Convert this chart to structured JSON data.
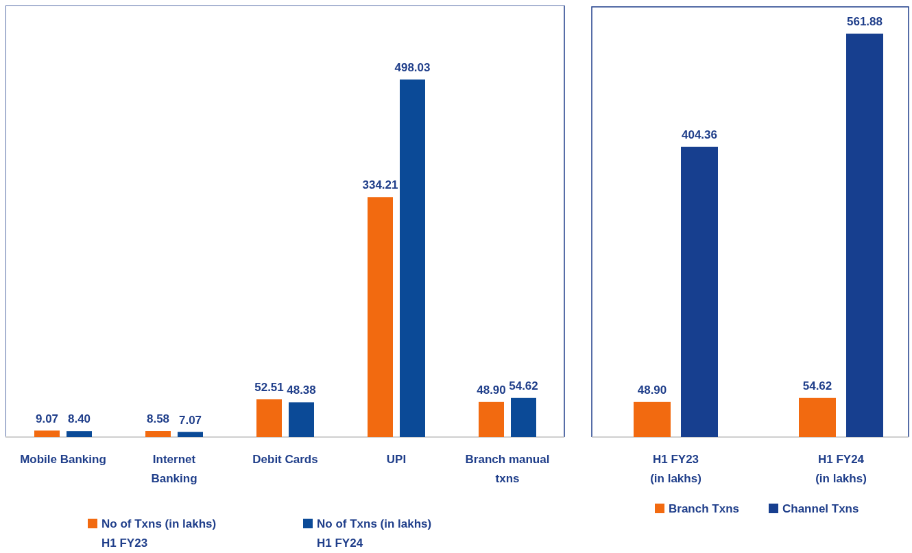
{
  "chart_data": [
    {
      "type": "bar",
      "categories": [
        "Mobile Banking",
        "Internet Banking",
        "Debit Cards",
        "UPI",
        "Branch manual txns"
      ],
      "series": [
        {
          "name": "No of Txns (in lakhs) H1 FY23",
          "color": "#f26a10",
          "values": [
            9.07,
            8.58,
            52.51,
            334.21,
            48.9
          ],
          "value_labels": [
            "9.07",
            "8.58",
            "52.51",
            "334.21",
            "48.90"
          ]
        },
        {
          "name": "No of Txns (in lakhs) H1 FY24",
          "color": "#0b4a97",
          "values": [
            8.4,
            7.07,
            48.38,
            498.03,
            54.62
          ],
          "value_labels": [
            "8.40",
            "7.07",
            "48.38",
            "498.03",
            "54.62"
          ]
        }
      ],
      "legend": "bottom"
    },
    {
      "type": "bar",
      "categories": [
        "H1 FY23 (in lakhs)",
        "H1 FY24 (in lakhs)"
      ],
      "series": [
        {
          "name": "Branch Txns",
          "color": "#f26a10",
          "values": [
            48.9,
            54.62
          ],
          "value_labels": [
            "48.90",
            "54.62"
          ]
        },
        {
          "name": "Channel Txns",
          "color": "#173f8f",
          "values": [
            404.36,
            561.88
          ],
          "value_labels": [
            "404.36",
            "561.88"
          ]
        }
      ],
      "legend": "bottom"
    }
  ]
}
